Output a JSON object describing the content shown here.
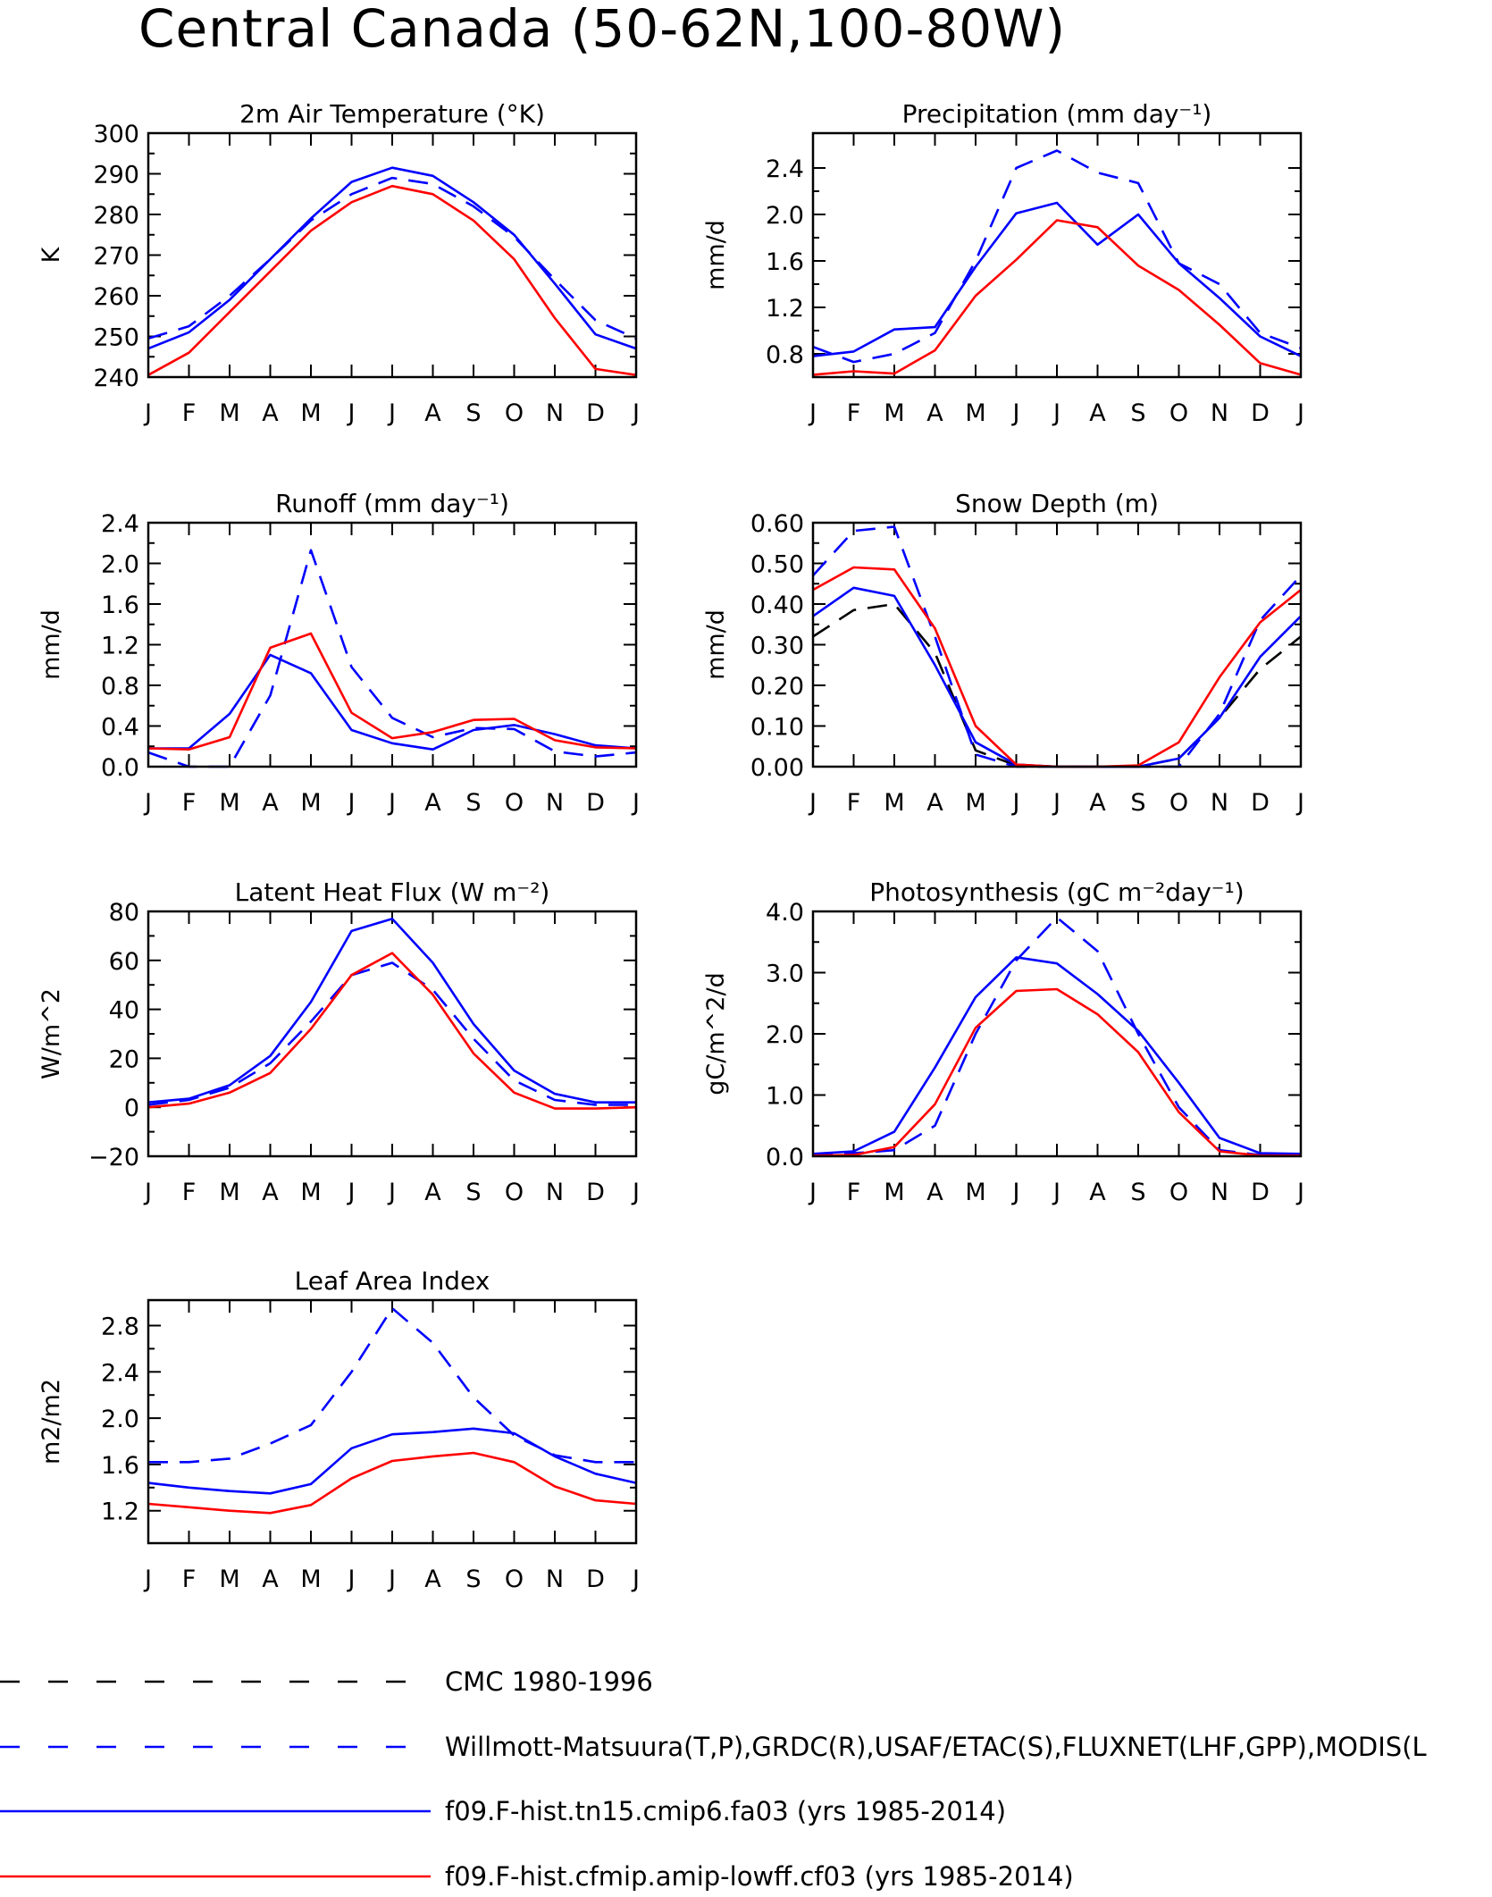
{
  "title": "Central Canada (50-62N,100-80W)",
  "months": [
    "J",
    "F",
    "M",
    "A",
    "M",
    "J",
    "J",
    "A",
    "S",
    "O",
    "N",
    "D",
    "J"
  ],
  "styles": {
    "cmc": {
      "color": "#000000",
      "dash": true
    },
    "obs": {
      "color": "#0000ff",
      "dash": true
    },
    "tn15": {
      "color": "#0000ff",
      "dash": false
    },
    "cf03": {
      "color": "#ff0000",
      "dash": false
    }
  },
  "legend": [
    {
      "key": "cmc",
      "label": "CMC 1980-1996"
    },
    {
      "key": "obs",
      "label": "Willmott-Matsuura(T,P),GRDC(R),USAF/ETAC(S),FLUXNET(LHF,GPP),MODIS(L"
    },
    {
      "key": "tn15",
      "label": "f09.F-hist.tn15.cmip6.fa03 (yrs 1985-2014)"
    },
    {
      "key": "cf03",
      "label": "f09.F-hist.cfmip.amip-lowff.cf03 (yrs 1985-2014)"
    }
  ],
  "chart_data": [
    {
      "type": "line",
      "title": "2m Air Temperature (°K)",
      "ylabel": "K",
      "ylim": [
        240,
        300
      ],
      "yticks": [
        240,
        250,
        260,
        270,
        280,
        290,
        300
      ],
      "ytick_labels": [
        "240",
        "250",
        "260",
        "270",
        "280",
        "290",
        "300"
      ],
      "series": [
        {
          "key": "obs",
          "values": [
            249.5,
            252.5,
            260,
            269,
            278.5,
            285,
            289,
            287.5,
            282,
            274.5,
            264,
            254,
            249.5
          ]
        },
        {
          "key": "tn15",
          "values": [
            247,
            251,
            259,
            269,
            279,
            288,
            291.5,
            289.5,
            283,
            275,
            263,
            250.5,
            247
          ]
        },
        {
          "key": "cf03",
          "values": [
            240.5,
            246,
            256,
            266,
            276,
            283,
            287,
            285,
            278.5,
            269,
            254.5,
            242,
            240.5
          ]
        }
      ]
    },
    {
      "type": "line",
      "title": "Precipitation (mm day⁻¹)",
      "ylabel": "mm/d",
      "ylim": [
        0.6,
        2.7
      ],
      "yticks": [
        0.8,
        1.2,
        1.6,
        2.0,
        2.4
      ],
      "ytick_labels": [
        "0.8",
        "1.2",
        "1.6",
        "2.0",
        "2.4"
      ],
      "series": [
        {
          "key": "obs",
          "values": [
            0.86,
            0.73,
            0.8,
            0.98,
            1.6,
            2.4,
            2.55,
            2.36,
            2.27,
            1.58,
            1.4,
            0.98,
            0.85
          ]
        },
        {
          "key": "tn15",
          "values": [
            0.78,
            0.82,
            1.01,
            1.03,
            1.55,
            2.01,
            2.1,
            1.74,
            2.0,
            1.58,
            1.28,
            0.95,
            0.78
          ]
        },
        {
          "key": "cf03",
          "values": [
            0.62,
            0.65,
            0.63,
            0.83,
            1.3,
            1.61,
            1.95,
            1.89,
            1.56,
            1.35,
            1.05,
            0.72,
            0.62
          ]
        }
      ]
    },
    {
      "type": "line",
      "title": "Runoff (mm day⁻¹)",
      "ylabel": "mm/d",
      "ylim": [
        0,
        2.4
      ],
      "yticks": [
        0,
        0.4,
        0.8,
        1.2,
        1.6,
        2.0,
        2.4
      ],
      "ytick_labels": [
        "0.0",
        "0.4",
        "0.8",
        "1.2",
        "1.6",
        "2.0",
        "2.4"
      ],
      "series": [
        {
          "key": "obs",
          "values": [
            0.14,
            0.0,
            0.0,
            0.7,
            2.13,
            0.98,
            0.48,
            0.29,
            0.38,
            0.37,
            0.15,
            0.1,
            0.14
          ]
        },
        {
          "key": "tn15",
          "values": [
            0.18,
            0.18,
            0.52,
            1.1,
            0.92,
            0.36,
            0.23,
            0.17,
            0.36,
            0.41,
            0.32,
            0.21,
            0.18
          ]
        },
        {
          "key": "cf03",
          "values": [
            0.18,
            0.17,
            0.29,
            1.17,
            1.31,
            0.53,
            0.28,
            0.34,
            0.46,
            0.47,
            0.26,
            0.19,
            0.18
          ]
        }
      ]
    },
    {
      "type": "line",
      "title": "Snow Depth (m)",
      "ylabel": "mm/d",
      "ylim": [
        0,
        0.6
      ],
      "yticks": [
        0,
        0.1,
        0.2,
        0.3,
        0.4,
        0.5,
        0.6
      ],
      "ytick_labels": [
        "0.00",
        "0.10",
        "0.20",
        "0.30",
        "0.40",
        "0.50",
        "0.60"
      ],
      "series": [
        {
          "key": "cmc",
          "values": [
            0.32,
            0.385,
            0.4,
            0.28,
            0.04,
            0.003,
            0.0,
            0.0,
            0.0,
            0.02,
            0.12,
            0.24,
            0.32
          ]
        },
        {
          "key": "obs",
          "values": [
            0.47,
            0.58,
            0.59,
            0.32,
            0.03,
            0.0,
            0.0,
            0.0,
            0.0,
            0.0,
            0.13,
            0.36,
            0.47
          ]
        },
        {
          "key": "tn15",
          "values": [
            0.37,
            0.44,
            0.42,
            0.25,
            0.06,
            0.005,
            0.0,
            0.0,
            0.0,
            0.02,
            0.12,
            0.27,
            0.37
          ]
        },
        {
          "key": "cf03",
          "values": [
            0.435,
            0.49,
            0.485,
            0.34,
            0.1,
            0.005,
            0.0,
            0.0,
            0.003,
            0.06,
            0.22,
            0.355,
            0.435
          ]
        }
      ]
    },
    {
      "type": "line",
      "title": "Latent Heat Flux (W m⁻²)",
      "ylabel": "W/m^2",
      "ylim": [
        -20,
        80
      ],
      "yticks": [
        -20,
        0,
        20,
        40,
        60,
        80
      ],
      "ytick_labels": [
        "−20",
        "0",
        "20",
        "40",
        "60",
        "80"
      ],
      "series": [
        {
          "key": "obs",
          "values": [
            1,
            3,
            8,
            18,
            35,
            54,
            59,
            48,
            28,
            11,
            3,
            1,
            1
          ]
        },
        {
          "key": "tn15",
          "values": [
            2,
            3.5,
            9,
            21,
            43,
            72,
            77,
            59,
            34,
            15,
            5.5,
            2,
            2
          ]
        },
        {
          "key": "cf03",
          "values": [
            0,
            1.5,
            6,
            14,
            32,
            54,
            63,
            46,
            22,
            6,
            -0.5,
            -0.5,
            0
          ]
        }
      ]
    },
    {
      "type": "line",
      "title": "Photosynthesis (gC m⁻²day⁻¹)",
      "ylabel": "gC/m^2/d",
      "ylim": [
        0,
        4.0
      ],
      "yticks": [
        0,
        1.0,
        2.0,
        3.0,
        4.0
      ],
      "ytick_labels": [
        "0.0",
        "1.0",
        "2.0",
        "3.0",
        "4.0"
      ],
      "series": [
        {
          "key": "obs",
          "values": [
            0.02,
            0.05,
            0.1,
            0.5,
            2.0,
            3.2,
            3.9,
            3.35,
            2.0,
            0.8,
            0.1,
            0.02,
            0.02
          ]
        },
        {
          "key": "tn15",
          "values": [
            0.04,
            0.08,
            0.4,
            1.45,
            2.6,
            3.25,
            3.15,
            2.65,
            2.05,
            1.2,
            0.3,
            0.05,
            0.04
          ]
        },
        {
          "key": "cf03",
          "values": [
            0.01,
            0.02,
            0.15,
            0.85,
            2.1,
            2.7,
            2.73,
            2.32,
            1.7,
            0.72,
            0.08,
            0.01,
            0.01
          ]
        }
      ]
    },
    {
      "type": "line",
      "title": "Leaf Area Index",
      "ylabel": "m2/m2",
      "ylim": [
        0.92,
        3.02
      ],
      "yticks": [
        1.2,
        1.6,
        2.0,
        2.4,
        2.8
      ],
      "ytick_labels": [
        "1.2",
        "1.6",
        "2.0",
        "2.4",
        "2.8"
      ],
      "series": [
        {
          "key": "obs",
          "values": [
            1.62,
            1.62,
            1.65,
            1.78,
            1.94,
            2.4,
            2.95,
            2.65,
            2.18,
            1.85,
            1.68,
            1.62,
            1.62
          ]
        },
        {
          "key": "tn15",
          "values": [
            1.44,
            1.4,
            1.37,
            1.35,
            1.43,
            1.74,
            1.86,
            1.88,
            1.91,
            1.87,
            1.67,
            1.52,
            1.44
          ]
        },
        {
          "key": "cf03",
          "values": [
            1.26,
            1.23,
            1.2,
            1.18,
            1.25,
            1.48,
            1.63,
            1.67,
            1.7,
            1.62,
            1.41,
            1.29,
            1.26
          ]
        }
      ]
    }
  ]
}
